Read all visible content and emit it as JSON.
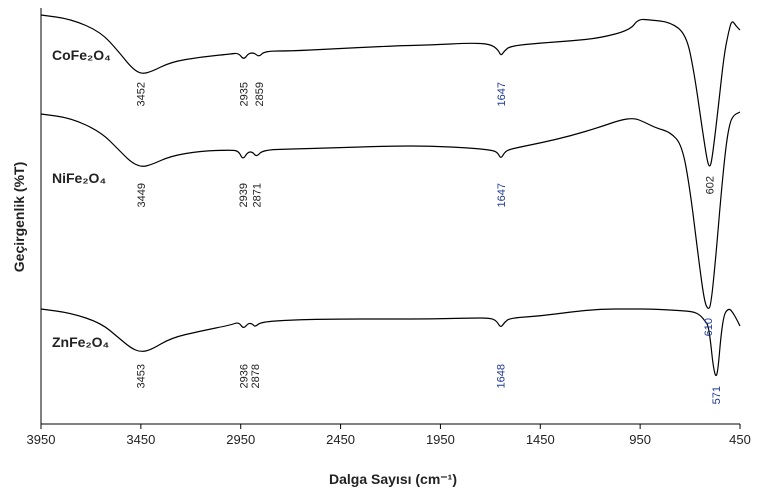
{
  "chart_data": {
    "type": "line",
    "title": "",
    "xlabel": "Dalga Sayısı (cm⁻¹)",
    "ylabel": "Geçirgenlik (%T)",
    "xlim": [
      3950,
      450
    ],
    "x_reversed": true,
    "xticks": [
      3950,
      3450,
      2950,
      2450,
      1950,
      1450,
      950,
      450
    ],
    "grid": false,
    "y_ticks_shown": false,
    "series": [
      {
        "name": "CoFe₂O₄",
        "peaks": [
          {
            "label": "3452",
            "x": 3452,
            "color": "#222222"
          },
          {
            "label": "2935",
            "x": 2935,
            "color": "#222222"
          },
          {
            "label": "2859",
            "x": 2859,
            "color": "#222222"
          },
          {
            "label": "1647",
            "x": 1647,
            "color": "#1f3a93"
          },
          {
            "label": "602",
            "x": 602,
            "color": "#222222"
          }
        ],
        "points": [
          [
            3950,
            15
          ],
          [
            3800,
            19
          ],
          [
            3650,
            32
          ],
          [
            3560,
            52
          ],
          [
            3500,
            67
          ],
          [
            3452,
            74
          ],
          [
            3400,
            72
          ],
          [
            3300,
            62
          ],
          [
            3150,
            57
          ],
          [
            3000,
            54
          ],
          [
            2960,
            53
          ],
          [
            2935,
            60
          ],
          [
            2910,
            53
          ],
          [
            2880,
            53
          ],
          [
            2859,
            57
          ],
          [
            2830,
            51
          ],
          [
            2700,
            51
          ],
          [
            2500,
            49
          ],
          [
            2200,
            46
          ],
          [
            2000,
            45
          ],
          [
            1800,
            43
          ],
          [
            1700,
            44
          ],
          [
            1660,
            50
          ],
          [
            1647,
            56
          ],
          [
            1630,
            51
          ],
          [
            1600,
            46
          ],
          [
            1450,
            43
          ],
          [
            1300,
            41
          ],
          [
            1150,
            38
          ],
          [
            1000,
            30
          ],
          [
            960,
            19
          ],
          [
            900,
            20
          ],
          [
            800,
            22
          ],
          [
            720,
            34
          ],
          [
            680,
            72
          ],
          [
            640,
            128
          ],
          [
            615,
            160
          ],
          [
            602,
            168
          ],
          [
            590,
            160
          ],
          [
            560,
            110
          ],
          [
            530,
            55
          ],
          [
            505,
            30
          ],
          [
            490,
            20
          ],
          [
            470,
            26
          ],
          [
            450,
            30
          ]
        ]
      },
      {
        "name": "NiFe₂O₄",
        "peaks": [
          {
            "label": "3449",
            "x": 3449,
            "color": "#222222"
          },
          {
            "label": "2939",
            "x": 2939,
            "color": "#222222"
          },
          {
            "label": "2871",
            "x": 2871,
            "color": "#222222"
          },
          {
            "label": "1647",
            "x": 1647,
            "color": "#1f3a93"
          },
          {
            "label": "610",
            "x": 610,
            "color": "#1f3a93"
          }
        ],
        "points": [
          [
            3950,
            114
          ],
          [
            3800,
            118
          ],
          [
            3650,
            132
          ],
          [
            3560,
            150
          ],
          [
            3500,
            162
          ],
          [
            3449,
            167
          ],
          [
            3400,
            165
          ],
          [
            3300,
            156
          ],
          [
            3150,
            151
          ],
          [
            3000,
            150
          ],
          [
            2960,
            151
          ],
          [
            2939,
            160
          ],
          [
            2915,
            152
          ],
          [
            2890,
            152
          ],
          [
            2871,
            157
          ],
          [
            2840,
            150
          ],
          [
            2700,
            149
          ],
          [
            2500,
            148
          ],
          [
            2200,
            146
          ],
          [
            2000,
            146
          ],
          [
            1800,
            148
          ],
          [
            1700,
            150
          ],
          [
            1665,
            152
          ],
          [
            1647,
            159
          ],
          [
            1628,
            152
          ],
          [
            1600,
            149
          ],
          [
            1450,
            143
          ],
          [
            1300,
            136
          ],
          [
            1150,
            127
          ],
          [
            1050,
            120
          ],
          [
            980,
            118
          ],
          [
            930,
            122
          ],
          [
            870,
            128
          ],
          [
            800,
            132
          ],
          [
            740,
            145
          ],
          [
            700,
            190
          ],
          [
            660,
            255
          ],
          [
            630,
            300
          ],
          [
            610,
            310
          ],
          [
            595,
            305
          ],
          [
            570,
            255
          ],
          [
            545,
            195
          ],
          [
            520,
            145
          ],
          [
            500,
            122
          ],
          [
            480,
            115
          ],
          [
            460,
            113
          ],
          [
            450,
            112
          ]
        ]
      },
      {
        "name": "ZnFe₂O₄",
        "peaks": [
          {
            "label": "3453",
            "x": 3453,
            "color": "#222222"
          },
          {
            "label": "2936",
            "x": 2936,
            "color": "#222222"
          },
          {
            "label": "2878",
            "x": 2878,
            "color": "#222222"
          },
          {
            "label": "1648",
            "x": 1648,
            "color": "#1f3a93"
          },
          {
            "label": "571",
            "x": 571,
            "color": "#1f3a93"
          }
        ],
        "points": [
          [
            3950,
            309
          ],
          [
            3800,
            313
          ],
          [
            3650,
            323
          ],
          [
            3560,
            338
          ],
          [
            3500,
            348
          ],
          [
            3453,
            352
          ],
          [
            3400,
            350
          ],
          [
            3300,
            338
          ],
          [
            3150,
            331
          ],
          [
            3000,
            325
          ],
          [
            2960,
            322
          ],
          [
            2936,
            329
          ],
          [
            2912,
            323
          ],
          [
            2890,
            324
          ],
          [
            2878,
            327
          ],
          [
            2850,
            322
          ],
          [
            2700,
            320
          ],
          [
            2500,
            319
          ],
          [
            2200,
            319
          ],
          [
            2000,
            319
          ],
          [
            1800,
            318
          ],
          [
            1700,
            318
          ],
          [
            1668,
            321
          ],
          [
            1648,
            328
          ],
          [
            1628,
            322
          ],
          [
            1600,
            318
          ],
          [
            1450,
            316
          ],
          [
            1300,
            312
          ],
          [
            1150,
            309
          ],
          [
            1000,
            309
          ],
          [
            900,
            309
          ],
          [
            800,
            310
          ],
          [
            720,
            311
          ],
          [
            680,
            312
          ],
          [
            650,
            315
          ],
          [
            625,
            321
          ],
          [
            610,
            325
          ],
          [
            598,
            340
          ],
          [
            585,
            365
          ],
          [
            571,
            378
          ],
          [
            560,
            370
          ],
          [
            545,
            335
          ],
          [
            530,
            315
          ],
          [
            515,
            310
          ],
          [
            500,
            309
          ],
          [
            485,
            313
          ],
          [
            470,
            318
          ],
          [
            450,
            326
          ]
        ]
      }
    ]
  }
}
